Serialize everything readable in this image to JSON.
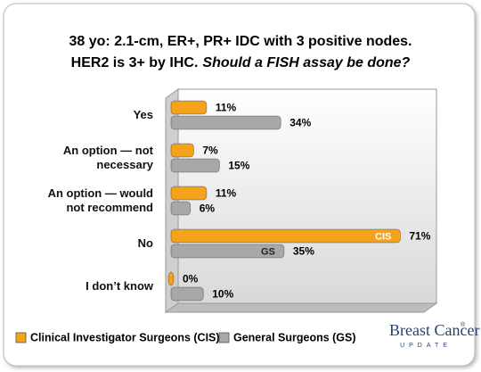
{
  "chart_data": {
    "type": "bar",
    "orientation": "horizontal",
    "title": [
      "38 yo: 2.1-cm, ER+, PR+ IDC with 3 positive nodes.",
      "HER2 is 3+ by IHC.",
      "Should a FISH assay be done?"
    ],
    "categories": [
      "Yes",
      "An option — not necessary",
      "An option — would not recommend",
      "No",
      "I don’t know"
    ],
    "series": [
      {
        "name": "Clinical Investigator Surgeons (CIS)",
        "color": "#f5a21c",
        "values": [
          11,
          7,
          11,
          71,
          0
        ],
        "value_labels": [
          "11%",
          "7%",
          "11%",
          "71%",
          "0%"
        ],
        "bar_labels": [
          null,
          null,
          null,
          "CIS",
          null
        ]
      },
      {
        "name": "General Surgeons (GS)",
        "color": "#a8a8a8",
        "values": [
          34,
          15,
          6,
          35,
          10
        ],
        "value_labels": [
          "34%",
          "15%",
          "6%",
          "35%",
          "10%"
        ],
        "bar_labels": [
          null,
          null,
          null,
          "GS",
          null
        ]
      }
    ],
    "xlim": [
      0,
      80
    ],
    "logo": {
      "name": "Breast Cancer",
      "mark": "®",
      "sub": "UPDATE"
    }
  }
}
